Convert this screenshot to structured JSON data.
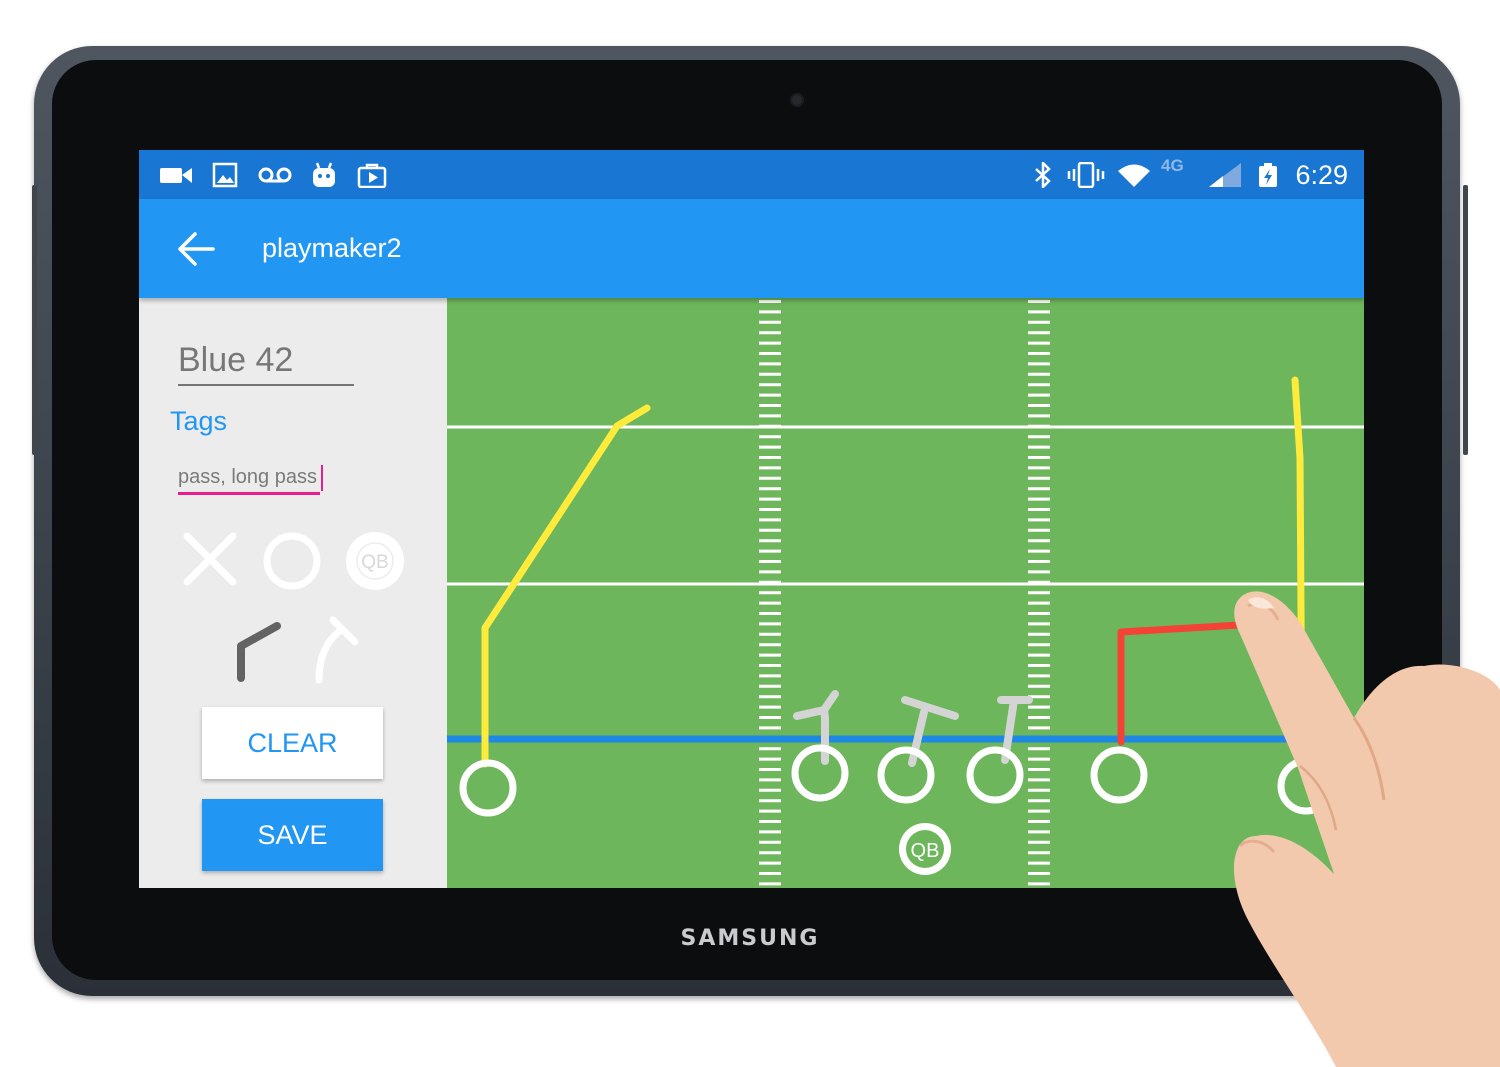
{
  "device": {
    "brand": "SAMSUNG"
  },
  "status_bar": {
    "left_icons": [
      "video-icon",
      "image-icon",
      "voicemail-icon",
      "android-icon",
      "play-store-icon"
    ],
    "right_icons": [
      "bluetooth-icon",
      "vibrate-icon",
      "wifi-icon",
      "network-type-icon",
      "signal-icon",
      "battery-icon"
    ],
    "network_type": "4G",
    "time": "6:29"
  },
  "app_bar": {
    "back_icon": "arrow-back-icon",
    "title": "playmaker2"
  },
  "editor": {
    "play_name": "Blue 42",
    "tags_label": "Tags",
    "tags_value": "pass, long pass",
    "tools": [
      {
        "name": "x-tool",
        "icon": "x-icon"
      },
      {
        "name": "circle-tool",
        "icon": "circle-icon"
      },
      {
        "name": "qb-tool",
        "icon": "qb-icon",
        "label": "QB"
      },
      {
        "name": "route-tool",
        "icon": "route-icon"
      },
      {
        "name": "block-tool",
        "icon": "block-arrow-icon"
      }
    ],
    "clear_label": "CLEAR",
    "save_label": "SAVE"
  },
  "field": {
    "qb_label": "QB",
    "colors": {
      "grass": "#6db65b",
      "yard_line": "#ffffff",
      "line_of_scrimmage": "#1e88e5",
      "route_yellow": "#ffeb3b",
      "route_red": "#f44336",
      "block_gray": "#d4d4d4"
    }
  },
  "colors": {
    "status_bar": "#1976d2",
    "app_bar": "#2196f3",
    "accent": "#2196f3",
    "tags_underline": "#e91e8c"
  }
}
